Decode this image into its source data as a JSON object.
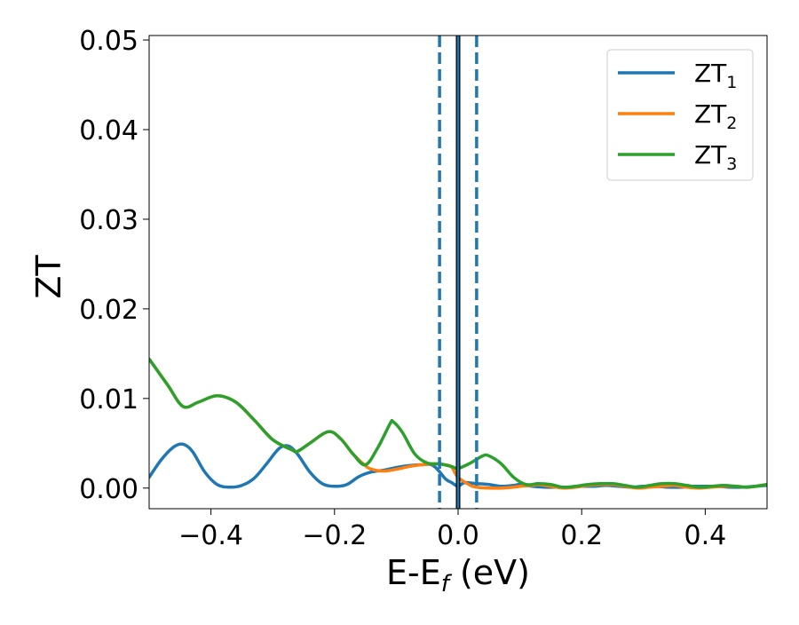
{
  "chart_data": {
    "type": "line",
    "xlabel_main": "E-E",
    "xlabel_sub": "f",
    "xlabel_tail": " (eV)",
    "ylabel": "ZT",
    "xlim": [
      -0.5,
      0.5
    ],
    "ylim": [
      -0.0023,
      0.0505
    ],
    "x_ticks": [
      -0.4,
      -0.2,
      0.0,
      0.2,
      0.4
    ],
    "x_tick_labels": [
      "−0.4",
      "−0.2",
      "0.0",
      "0.2",
      "0.4"
    ],
    "y_ticks": [
      0.0,
      0.01,
      0.02,
      0.03,
      0.04,
      0.05
    ],
    "y_tick_labels": [
      "0.00",
      "0.01",
      "0.02",
      "0.03",
      "0.04",
      "0.05"
    ],
    "grid": false,
    "legend_position": "top-right",
    "vlines": [
      {
        "x": 0.0,
        "style": "solid",
        "color": "#000000"
      },
      {
        "x": 0.0,
        "style": "solid",
        "color": "#1f77b4"
      },
      {
        "x": -0.03,
        "style": "dashed",
        "color": "#1f77b4"
      },
      {
        "x": 0.03,
        "style": "dashed",
        "color": "#1f77b4"
      }
    ],
    "series": [
      {
        "name": "ZT",
        "sub": "1",
        "color": "#1f77b4",
        "x": [
          -0.5,
          -0.48,
          -0.46,
          -0.445,
          -0.43,
          -0.41,
          -0.39,
          -0.37,
          -0.35,
          -0.33,
          -0.31,
          -0.29,
          -0.275,
          -0.26,
          -0.24,
          -0.22,
          -0.2,
          -0.18,
          -0.16,
          -0.14,
          -0.12,
          -0.1,
          -0.08,
          -0.06,
          -0.04,
          -0.02,
          -0.01,
          0.0,
          0.01,
          0.03,
          0.05,
          0.07,
          0.09,
          0.1,
          0.12,
          0.14,
          0.16,
          0.18,
          0.2,
          0.22,
          0.24,
          0.26,
          0.28,
          0.3,
          0.32,
          0.34,
          0.36,
          0.38,
          0.4,
          0.42,
          0.44,
          0.46,
          0.48,
          0.5
        ],
        "y": [
          0.0012,
          0.0032,
          0.0046,
          0.0049,
          0.0041,
          0.0018,
          0.0004,
          0.0001,
          0.0003,
          0.0011,
          0.0027,
          0.0044,
          0.0047,
          0.0038,
          0.0018,
          0.0005,
          0.0002,
          0.0004,
          0.0013,
          0.0018,
          0.002,
          0.0023,
          0.0025,
          0.0026,
          0.0025,
          0.001,
          0.0006,
          0.0002,
          0.0006,
          0.0005,
          0.0004,
          0.0002,
          0.0003,
          0.0004,
          0.0002,
          0.0001,
          0.0001,
          0.0001,
          0.0002,
          0.0002,
          0.0003,
          0.0002,
          0.0001,
          0.0002,
          0.0002,
          0.0001,
          0.0001,
          0.0002,
          0.0002,
          0.0002,
          0.0001,
          0.0001,
          0.0002,
          0.0003
        ]
      },
      {
        "name": "ZT",
        "sub": "2",
        "color": "#ff7f0e",
        "x": [
          -0.5,
          -0.47,
          -0.445,
          -0.42,
          -0.39,
          -0.36,
          -0.33,
          -0.3,
          -0.27,
          -0.26,
          -0.24,
          -0.21,
          -0.19,
          -0.17,
          -0.15,
          -0.14,
          -0.12,
          -0.1,
          -0.08,
          -0.06,
          -0.04,
          -0.02,
          -0.01,
          0.0,
          0.02,
          0.03,
          0.05,
          0.07,
          0.09,
          0.1,
          0.12,
          0.13,
          0.15,
          0.17,
          0.19,
          0.21,
          0.23,
          0.25,
          0.27,
          0.29,
          0.31,
          0.33,
          0.35,
          0.37,
          0.39,
          0.41,
          0.43,
          0.45,
          0.47,
          0.5
        ],
        "y": [
          0.0144,
          0.0115,
          0.0091,
          0.0096,
          0.0103,
          0.0096,
          0.0076,
          0.0054,
          0.0043,
          0.0041,
          0.005,
          0.0063,
          0.0055,
          0.0038,
          0.0025,
          0.0021,
          0.0019,
          0.0021,
          0.0024,
          0.0026,
          0.0027,
          0.0026,
          0.0023,
          0.0012,
          0.0003,
          0.0001,
          0.0,
          0.0,
          0.0001,
          0.0002,
          0.0003,
          0.0004,
          0.0002,
          0.0,
          0.0001,
          0.0003,
          0.0004,
          0.0004,
          0.0002,
          0.0,
          0.0001,
          0.0002,
          0.0003,
          0.0001,
          0.0,
          0.0001,
          0.0002,
          0.0002,
          0.0001,
          0.0004
        ]
      },
      {
        "name": "ZT",
        "sub": "3",
        "color": "#2ca02c",
        "x": [
          -0.5,
          -0.47,
          -0.445,
          -0.42,
          -0.39,
          -0.36,
          -0.33,
          -0.3,
          -0.27,
          -0.26,
          -0.24,
          -0.21,
          -0.19,
          -0.17,
          -0.15,
          -0.13,
          -0.11,
          -0.105,
          -0.09,
          -0.07,
          -0.05,
          -0.03,
          -0.01,
          0.0,
          0.02,
          0.04,
          0.05,
          0.07,
          0.09,
          0.11,
          0.13,
          0.15,
          0.17,
          0.19,
          0.21,
          0.23,
          0.25,
          0.27,
          0.29,
          0.31,
          0.33,
          0.35,
          0.37,
          0.39,
          0.41,
          0.43,
          0.45,
          0.47,
          0.5
        ],
        "y": [
          0.0144,
          0.0115,
          0.0091,
          0.0096,
          0.0103,
          0.0096,
          0.0076,
          0.0054,
          0.0043,
          0.0041,
          0.005,
          0.0063,
          0.0055,
          0.0038,
          0.0026,
          0.0045,
          0.0072,
          0.0074,
          0.0062,
          0.0038,
          0.0028,
          0.0027,
          0.0024,
          0.0022,
          0.0028,
          0.0036,
          0.0036,
          0.0027,
          0.0012,
          0.0004,
          0.0005,
          0.0004,
          0.0001,
          0.0002,
          0.0004,
          0.0005,
          0.0005,
          0.0003,
          0.0001,
          0.0003,
          0.0005,
          0.0005,
          0.0003,
          0.0001,
          0.0002,
          0.0003,
          0.0002,
          0.0001,
          0.0004
        ]
      }
    ]
  }
}
